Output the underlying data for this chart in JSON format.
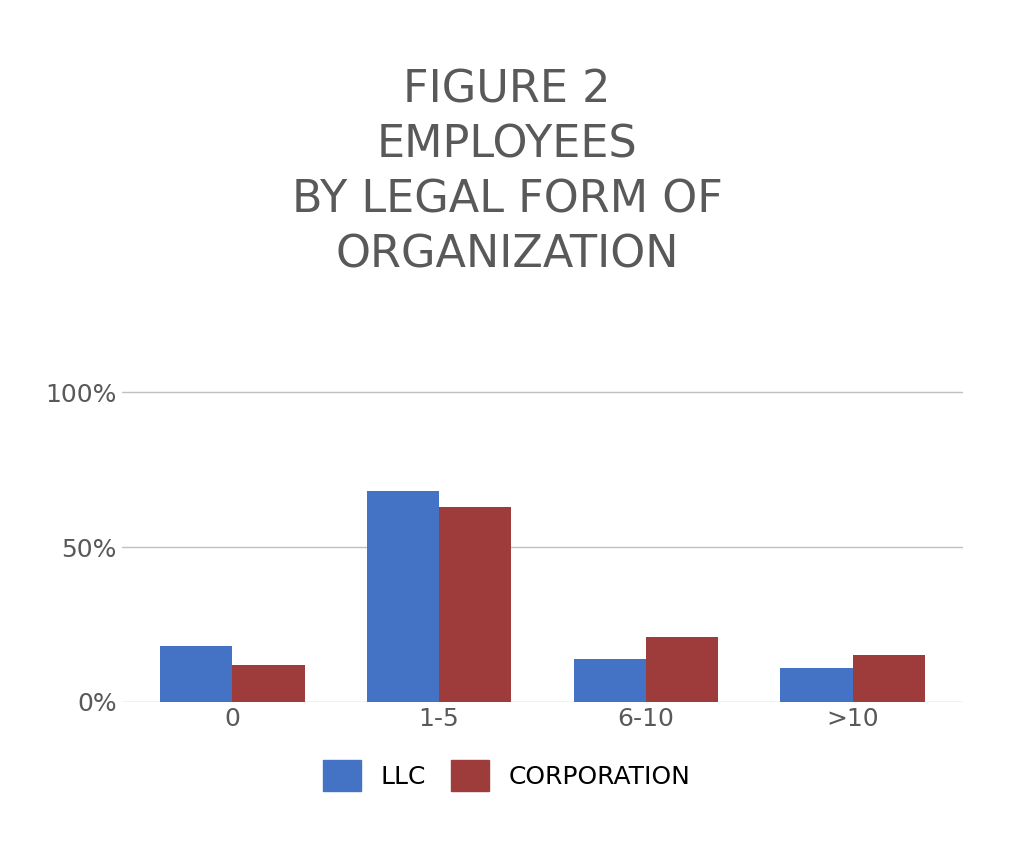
{
  "title": "FIGURE 2\nEMPLOYEES\nBY LEGAL FORM OF\nORGANIZATION",
  "categories": [
    "0",
    "1-5",
    "6-10",
    ">10"
  ],
  "llc_values": [
    0.18,
    0.68,
    0.14,
    0.11
  ],
  "corp_values": [
    0.12,
    0.63,
    0.21,
    0.15
  ],
  "llc_color": "#4472C4",
  "corp_color": "#9E3B3B",
  "background_color": "#FFFFFF",
  "title_color": "#595959",
  "tick_color": "#595959",
  "grid_color": "#C0C0C0",
  "yticks": [
    0.0,
    0.5,
    1.0
  ],
  "ytick_labels": [
    "0%",
    "50%",
    "100%"
  ],
  "ylim": [
    0,
    1.05
  ],
  "legend_labels": [
    "LLC",
    "CORPORATION"
  ],
  "bar_width": 0.35,
  "title_fontsize": 32,
  "tick_fontsize": 18,
  "legend_fontsize": 18
}
